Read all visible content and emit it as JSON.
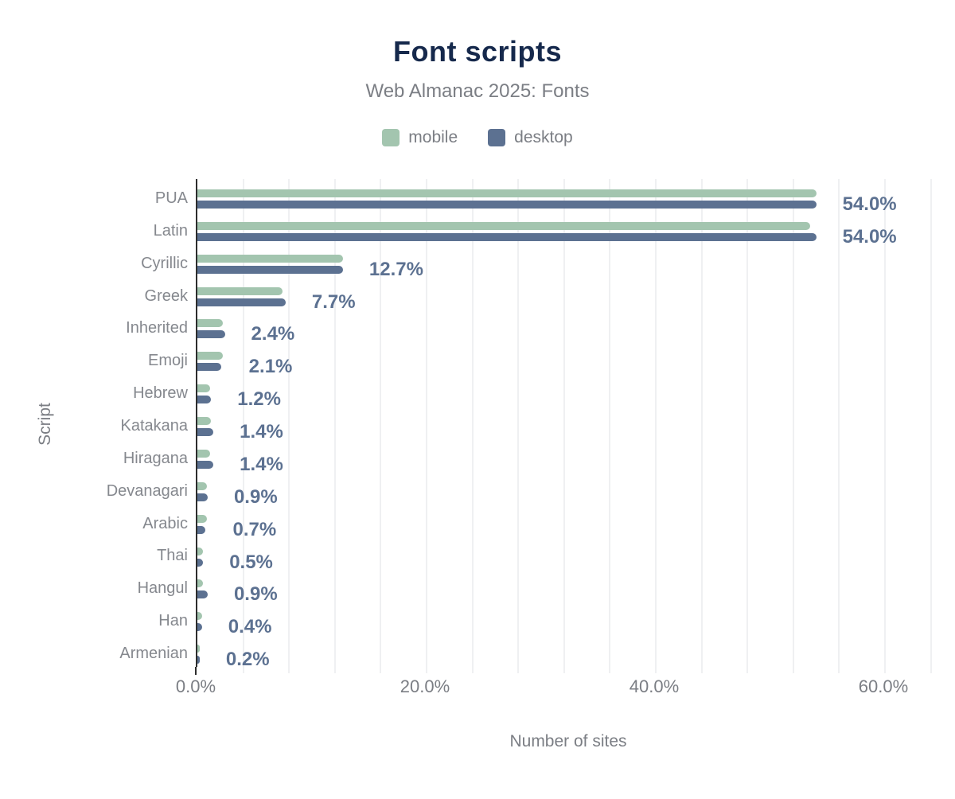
{
  "header": {
    "title": "Font scripts",
    "subtitle": "Web Almanac 2025: Fonts"
  },
  "legend": {
    "items": [
      {
        "label": "mobile",
        "color": "#a3c5af"
      },
      {
        "label": "desktop",
        "color": "#5c7191"
      }
    ]
  },
  "axes": {
    "x_title": "Number of sites",
    "y_title": "Script"
  },
  "chart_data": {
    "type": "bar",
    "orientation": "horizontal",
    "title": "Font scripts",
    "subtitle": "Web Almanac 2025: Fonts",
    "xlabel": "Number of sites",
    "ylabel": "Script",
    "xlim": [
      0,
      65
    ],
    "minor_gridline_step_pct": 4,
    "grid": "vertical-minor-on",
    "legend_position": "top",
    "x_ticks": [
      {
        "value": 0,
        "label": "0.0%"
      },
      {
        "value": 20,
        "label": "20.0%"
      },
      {
        "value": 40,
        "label": "40.0%"
      },
      {
        "value": 60,
        "label": "60.0%"
      }
    ],
    "categories": [
      "PUA",
      "Latin",
      "Cyrillic",
      "Greek",
      "Inherited",
      "Emoji",
      "Hebrew",
      "Katakana",
      "Hiragana",
      "Devanagari",
      "Arabic",
      "Thai",
      "Hangul",
      "Han",
      "Armenian"
    ],
    "series": [
      {
        "name": "mobile",
        "color": "#a3c5af",
        "values": [
          54.0,
          53.5,
          12.7,
          7.4,
          2.2,
          2.2,
          1.1,
          1.2,
          1.1,
          0.8,
          0.8,
          0.5,
          0.5,
          0.4,
          0.2
        ]
      },
      {
        "name": "desktop",
        "color": "#5c7191",
        "values": [
          54.0,
          54.0,
          12.7,
          7.7,
          2.4,
          2.1,
          1.2,
          1.4,
          1.4,
          0.9,
          0.7,
          0.5,
          0.9,
          0.4,
          0.2
        ]
      }
    ],
    "data_labels": [
      "54.0%",
      "54.0%",
      "12.7%",
      "7.7%",
      "2.4%",
      "2.1%",
      "1.2%",
      "1.4%",
      "1.4%",
      "0.9%",
      "0.7%",
      "0.5%",
      "0.9%",
      "0.4%",
      "0.2%"
    ]
  },
  "colors": {
    "background": "#ffffff",
    "title_text": "#16294c",
    "subtitle_text": "#7b7e84",
    "axis_text": "#7b7e84",
    "category_text": "#85888e",
    "data_label_text": "#5c7191",
    "axis_line": "#2d2d2d",
    "gridline": "#eff0f2",
    "mobile": "#a3c5af",
    "desktop": "#5c7191"
  }
}
